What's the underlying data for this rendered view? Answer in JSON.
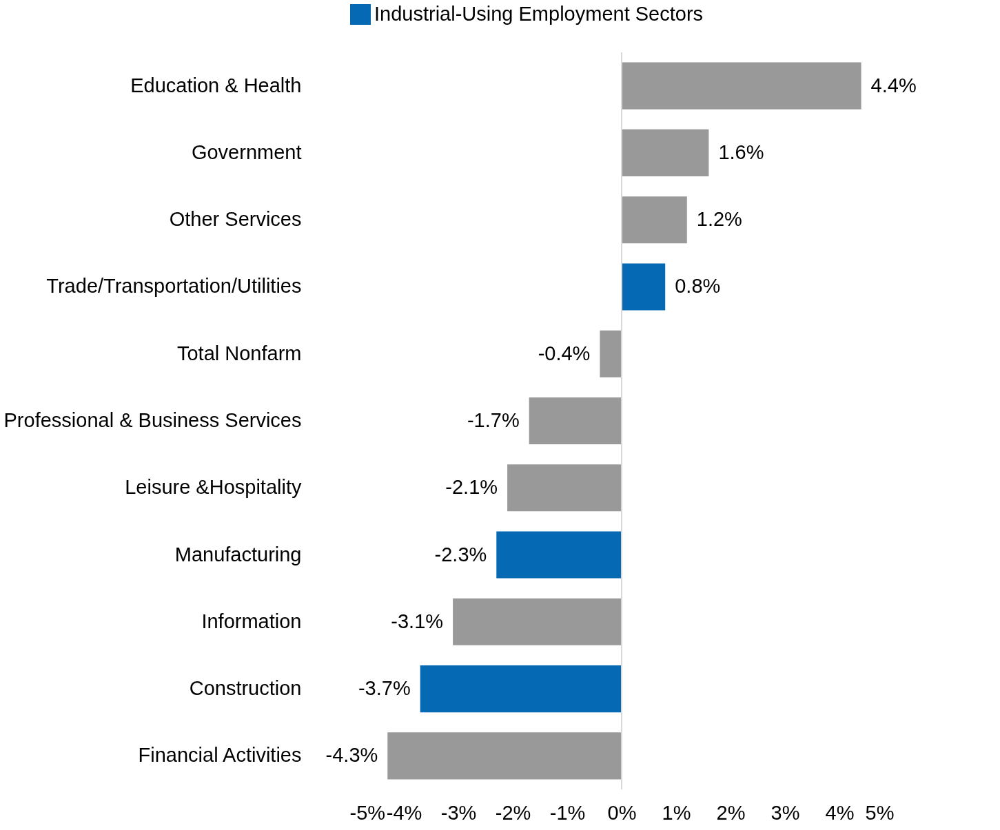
{
  "chart_data": {
    "type": "bar",
    "orientation": "horizontal",
    "categories": [
      "Education & Health",
      "Government",
      "Other Services",
      "Trade/Transportation/Utilities",
      "Total Nonfarm",
      "Professional & Business Services",
      "Leisure &Hospitality",
      "Manufacturing",
      "Information",
      "Construction",
      "Financial Activities"
    ],
    "series": [
      {
        "name": "Industrial-Using Employment Sectors",
        "color": "#0569b3",
        "values": [
          null,
          null,
          null,
          0.8,
          null,
          null,
          null,
          -2.3,
          null,
          -3.7,
          null
        ],
        "value_labels": [
          null,
          null,
          null,
          "0.8%",
          null,
          null,
          null,
          "-2.3%",
          null,
          "-3.7%",
          null
        ]
      },
      {
        "color": "#999999",
        "values": [
          4.4,
          1.6,
          1.2,
          null,
          -0.4,
          -1.7,
          -2.1,
          null,
          -3.1,
          null,
          -4.3
        ],
        "value_labels": [
          "4.4%",
          "1.6%",
          "1.2%",
          null,
          "-0.4%",
          "-1.7%",
          "-2.1%",
          null,
          "-3.1%",
          null,
          "-4.3%"
        ]
      }
    ],
    "xlim": [
      -5,
      5
    ],
    "xticks": [
      {
        "value": -5,
        "label": "-5%"
      },
      {
        "value": -4,
        "label": "-4%"
      },
      {
        "value": -3,
        "label": "-3%"
      },
      {
        "value": -2,
        "label": "-2%"
      },
      {
        "value": -1,
        "label": "-1%"
      },
      {
        "value": 0,
        "label": "0%"
      },
      {
        "value": 1,
        "label": "1%"
      },
      {
        "value": 2,
        "label": "2%"
      },
      {
        "value": 3,
        "label": "3%"
      },
      {
        "value": 4,
        "label": "4%"
      },
      {
        "value": 5,
        "label": "5%"
      }
    ],
    "ref_lines": [
      {
        "axis": "x",
        "value": 0,
        "color": "#d9d9d9"
      }
    ],
    "grid": false,
    "legend": "top"
  }
}
